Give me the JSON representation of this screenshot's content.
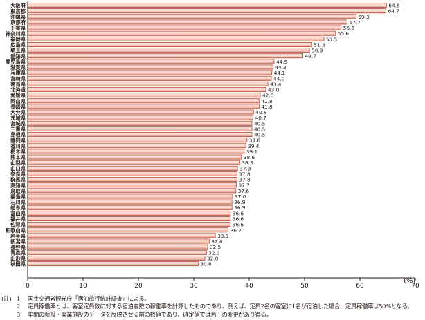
{
  "chart_data": {
    "type": "bar",
    "orientation": "horizontal",
    "categories": [
      "大阪府",
      "東京都",
      "沖縄県",
      "京都府",
      "千葉県",
      "神奈川県",
      "福岡県",
      "広島県",
      "埼玉県",
      "愛知県",
      "鹿児島県",
      "滋賀県",
      "兵庫県",
      "宮崎県",
      "徳島県",
      "北海道",
      "愛媛県",
      "岡山県",
      "長崎県",
      "大分県",
      "茨城県",
      "宮城県",
      "三重県",
      "島根県",
      "静岡県",
      "香川県",
      "栃木県",
      "熊本県",
      "山梨県",
      "山口県",
      "奈良県",
      "群馬県",
      "高知県",
      "鳥取県",
      "福島県",
      "石川県",
      "岐阜県",
      "富山県",
      "福井県",
      "佐賀県",
      "和歌山県",
      "岩手県",
      "新潟県",
      "長野県",
      "青森県",
      "山形県",
      "秋田県"
    ],
    "values": [
      64.8,
      64.7,
      59.3,
      57.7,
      56.6,
      55.6,
      53.5,
      51.3,
      50.9,
      49.7,
      44.5,
      44.3,
      44.1,
      44.0,
      43.4,
      43.0,
      42.0,
      41.8,
      41.8,
      40.8,
      40.7,
      40.5,
      40.5,
      40.5,
      39.6,
      39.4,
      39.1,
      38.6,
      38.3,
      37.9,
      37.8,
      37.8,
      37.7,
      37.6,
      37.0,
      36.9,
      36.9,
      36.6,
      36.6,
      36.6,
      36.2,
      33.9,
      32.8,
      32.5,
      32.3,
      32.0,
      30.8
    ],
    "value_labels": [
      "64.8",
      "64.7",
      "59.3",
      "57.7",
      "56.6",
      "55.6",
      "53.5",
      "51.3",
      "50.9",
      "49.7",
      "44.5",
      "44.3",
      "44.1",
      "44.0",
      "43.4",
      "43.0",
      "42.0",
      "41.8",
      "41.8",
      "40.8",
      "40.7",
      "40.5",
      "40.5",
      "40.5",
      "39.6",
      "39.4",
      "39.1",
      "38.6",
      "38.3",
      "37.9",
      "37.8",
      "37.8",
      "37.7",
      "37.6",
      "37.0",
      "36.9",
      "36.9",
      "36.6",
      "36.6",
      "36.6",
      "36.2",
      "33.9",
      "32.8",
      "32.5",
      "32.3",
      "32.0",
      "30.8"
    ],
    "xlim": [
      0,
      70
    ],
    "x_ticks": [
      "0",
      "10",
      "20",
      "30",
      "40",
      "50",
      "60",
      "70"
    ],
    "unit_label": "(%)",
    "grid": false,
    "colors": {
      "bar_edge": "#b4513c",
      "bar_light": "#f9ddd4",
      "bar_mid": "#ee9d8b",
      "axis": "#231815"
    }
  },
  "notes": {
    "prefix": "(注)",
    "items": [
      {
        "num": "1",
        "text": "国土交通省観光庁「宿泊旅行統計調査」による。"
      },
      {
        "num": "2",
        "text": "定員稼働率とは、客室定員数に対する宿泊者数の稼働率を計算したものであり、例えば、定員2名の客室に1名が宿泊した場合、定員稼働率は50%となる。"
      },
      {
        "num": "3",
        "text": "年間の新設・廃業施設のデータを反映させる前の数値であり、確定値では若干の変更があり得る。"
      }
    ]
  }
}
